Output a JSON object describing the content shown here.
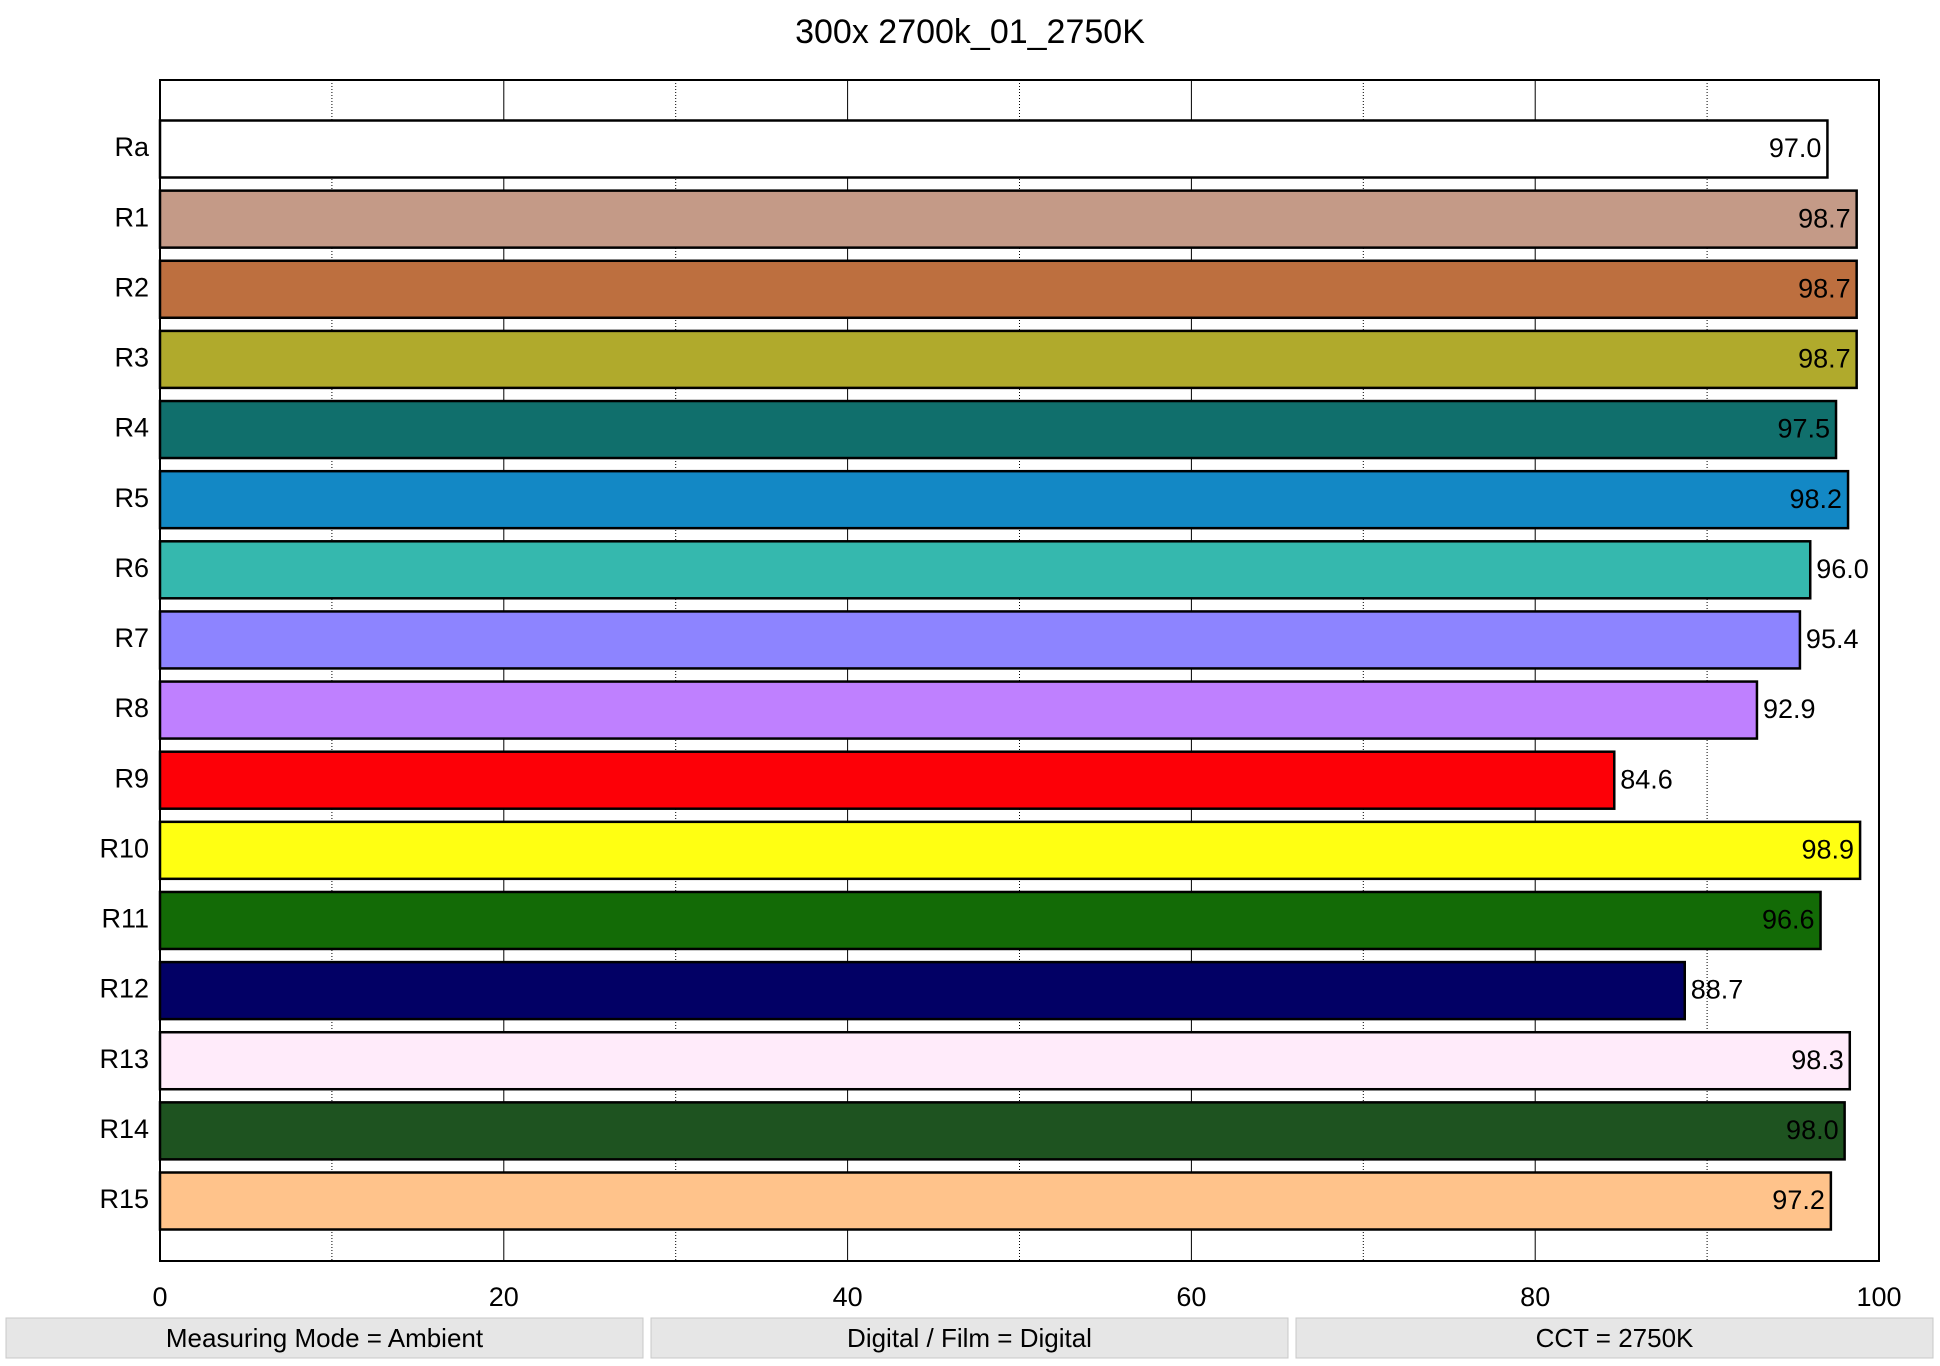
{
  "chart_data": {
    "type": "hbar",
    "title": "300x 2700k_01_2750K",
    "categories": [
      "Ra",
      "R1",
      "R2",
      "R3",
      "R4",
      "R5",
      "R6",
      "R7",
      "R8",
      "R9",
      "R10",
      "R11",
      "R12",
      "R13",
      "R14",
      "R15"
    ],
    "values": [
      97.0,
      98.7,
      98.7,
      98.7,
      97.5,
      98.2,
      96.0,
      95.4,
      92.9,
      84.6,
      98.9,
      96.6,
      88.7,
      98.3,
      98.0,
      97.2
    ],
    "value_labels": [
      "97.0",
      "98.7",
      "98.7",
      "98.7",
      "97.5",
      "98.2",
      "96.0",
      "95.4",
      "92.9",
      "84.6",
      "98.9",
      "96.6",
      "88.7",
      "98.3",
      "98.0",
      "97.2"
    ],
    "colors": [
      "#ffffff",
      "#c49a87",
      "#bd6f3f",
      "#b0aa2c",
      "#106f6c",
      "#1388c5",
      "#35b8ae",
      "#8d84ff",
      "#bf80ff",
      "#fd0007",
      "#ffff12",
      "#136b06",
      "#020065",
      "#ffebfa",
      "#1e5320",
      "#ffc38b"
    ],
    "xlim": [
      0,
      100
    ],
    "xticks": [
      0,
      20,
      40,
      60,
      80,
      100
    ],
    "minor_xticks": [
      10,
      30,
      50,
      70,
      90
    ],
    "grid": true
  },
  "footer": [
    "Measuring Mode = Ambient",
    "Digital / Film = Digital",
    "CCT = 2750K"
  ]
}
